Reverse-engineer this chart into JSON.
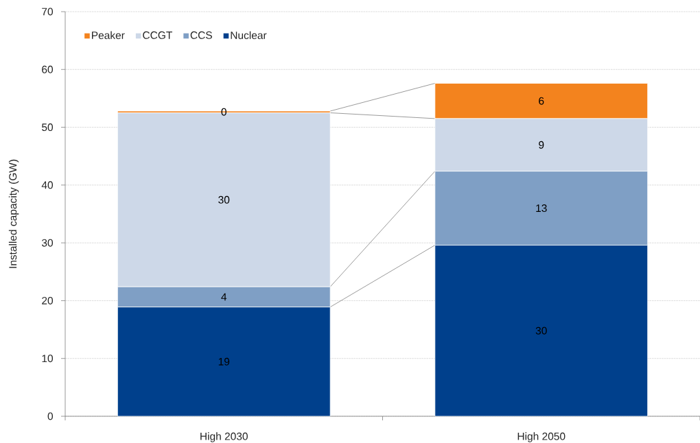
{
  "chart_data": {
    "type": "bar",
    "stacked": true,
    "ylabel": "Installed capacity (GW)",
    "categories": [
      "High 2030",
      "High 2050"
    ],
    "series": [
      {
        "name": "Nuclear",
        "color": "#00408C",
        "values": [
          18.9,
          29.6
        ],
        "value_labels": [
          "19",
          "30"
        ]
      },
      {
        "name": "CCS",
        "color": "#7F9FC5",
        "values": [
          3.5,
          12.8
        ],
        "value_labels": [
          "4",
          "13"
        ]
      },
      {
        "name": "CCGT",
        "color": "#CDD8E8",
        "values": [
          30.1,
          9.1
        ],
        "value_labels": [
          "30",
          "9"
        ]
      },
      {
        "name": "Peaker",
        "color": "#F3831E",
        "values": [
          0.3,
          6.1
        ],
        "value_labels": [
          "0",
          "6"
        ]
      }
    ],
    "ylim": [
      0,
      70
    ],
    "yticks": [
      0,
      10,
      20,
      30,
      40,
      50,
      60,
      70
    ],
    "grid": "y",
    "legend": "top left"
  }
}
